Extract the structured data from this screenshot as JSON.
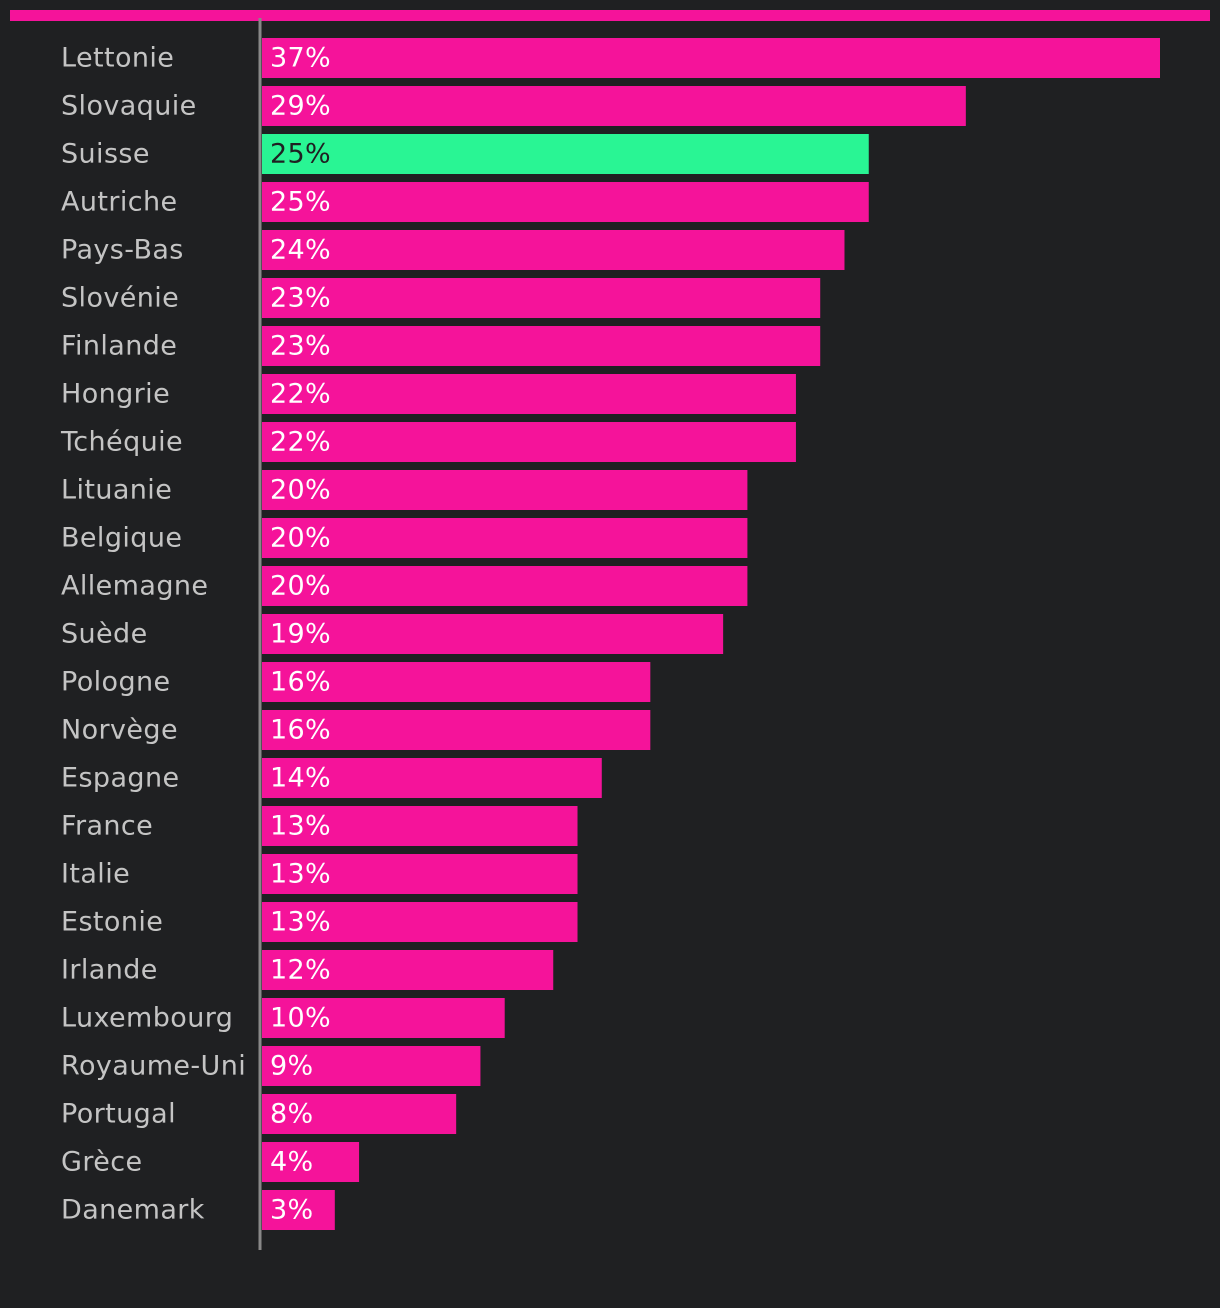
{
  "colors": {
    "background": "#1f2022",
    "bar": "#f5139a",
    "highlight": "#29f594",
    "axis": "#888888",
    "label_text": "#c4c4c4",
    "value_text": "#ffffff",
    "highlight_value_text": "#1f2022"
  },
  "chart_data": {
    "type": "bar",
    "orientation": "horizontal",
    "categories": [
      "Lettonie",
      "Slovaquie",
      "Suisse",
      "Autriche",
      "Pays-Bas",
      "Slovénie",
      "Finlande",
      "Hongrie",
      "Tchéquie",
      "Lituanie",
      "Belgique",
      "Allemagne",
      "Suède",
      "Pologne",
      "Norvège",
      "Espagne",
      "France",
      "Italie",
      "Estonie",
      "Irlande",
      "Luxembourg",
      "Royaume-Uni",
      "Portugal",
      "Grèce",
      "Danemark"
    ],
    "values": [
      37,
      29,
      25,
      25,
      24,
      23,
      23,
      22,
      22,
      20,
      20,
      20,
      19,
      16,
      16,
      14,
      13,
      13,
      13,
      12,
      10,
      9,
      8,
      4,
      3
    ],
    "value_labels": [
      "37%",
      "29%",
      "25%",
      "25%",
      "24%",
      "23%",
      "23%",
      "22%",
      "22%",
      "20%",
      "20%",
      "20%",
      "19%",
      "16%",
      "16%",
      "14%",
      "13%",
      "13%",
      "13%",
      "12%",
      "10%",
      "9%",
      "8%",
      "4%",
      "3%"
    ],
    "highlighted_category": "Suisse",
    "xlim": [
      0,
      37
    ],
    "grid": false,
    "title": "",
    "xlabel": "",
    "ylabel": ""
  }
}
